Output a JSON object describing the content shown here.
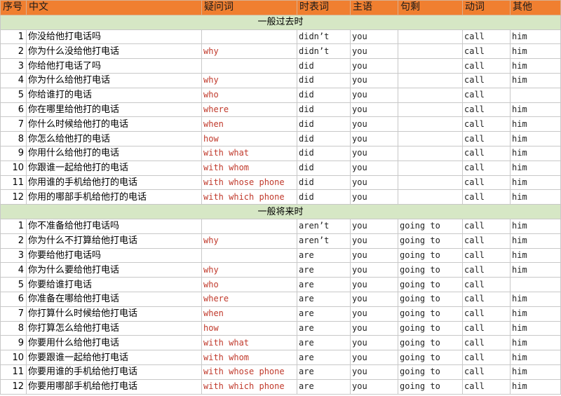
{
  "headers": [
    "序号",
    "中文",
    "疑问词",
    "时表词",
    "主语",
    "句剩",
    "动词",
    "其他"
  ],
  "sections": [
    {
      "title": "一般过去时",
      "rows": [
        [
          "1",
          "你没给他打电话吗",
          "",
          "didn’t",
          "you",
          "",
          "call",
          "him"
        ],
        [
          "2",
          "你为什么没给他打电话",
          "why",
          "didn’t",
          "you",
          "",
          "call",
          "him"
        ],
        [
          "3",
          "你给他打电话了吗",
          "",
          "did",
          "you",
          "",
          "call",
          "him"
        ],
        [
          "4",
          "你为什么给他打电话",
          "why",
          "did",
          "you",
          "",
          "call",
          "him"
        ],
        [
          "5",
          "你给谁打的电话",
          "who",
          "did",
          "you",
          "",
          "call",
          ""
        ],
        [
          "6",
          "你在哪里给他打的电话",
          "where",
          "did",
          "you",
          "",
          "call",
          "him"
        ],
        [
          "7",
          "你什么时候给他打的电话",
          "when",
          "did",
          "you",
          "",
          "call",
          "him"
        ],
        [
          "8",
          "你怎么给他打的电话",
          "how",
          "did",
          "you",
          "",
          "call",
          "him"
        ],
        [
          "9",
          "你用什么给他打的电话",
          "with what",
          "did",
          "you",
          "",
          "call",
          "him"
        ],
        [
          "10",
          "你跟谁一起给他打的电话",
          "with whom",
          "did",
          "you",
          "",
          "call",
          "him"
        ],
        [
          "11",
          "你用谁的手机给他打的电话",
          "with whose phone",
          "did",
          "you",
          "",
          "call",
          "him"
        ],
        [
          "12",
          "你用的哪部手机给他打的电话",
          "with which phone",
          "did",
          "you",
          "",
          "call",
          "him"
        ]
      ]
    },
    {
      "title": "一般将来时",
      "rows": [
        [
          "1",
          "你不准备给他打电话吗",
          "",
          "aren’t",
          "you",
          "going to",
          "call",
          "him"
        ],
        [
          "2",
          "你为什么不打算给他打电话",
          "why",
          "aren’t",
          "you",
          "going to",
          "call",
          "him"
        ],
        [
          "3",
          "你要给他打电话吗",
          "",
          "are",
          "you",
          "going to",
          "call",
          "him"
        ],
        [
          "4",
          "你为什么要给他打电话",
          "why",
          "are",
          "you",
          "going to",
          "call",
          "him"
        ],
        [
          "5",
          "你要给谁打电话",
          "who",
          "are",
          "you",
          "going to",
          "call",
          ""
        ],
        [
          "6",
          "你准备在哪给他打电话",
          "where",
          "are",
          "you",
          "going to",
          "call",
          "him"
        ],
        [
          "7",
          "你打算什么时候给他打电话",
          "when",
          "are",
          "you",
          "going to",
          "call",
          "him"
        ],
        [
          "8",
          "你打算怎么给他打电话",
          "how",
          "are",
          "you",
          "going to",
          "call",
          "him"
        ],
        [
          "9",
          "你要用什么给他打电话",
          "with what",
          "are",
          "you",
          "going to",
          "call",
          "him"
        ],
        [
          "10",
          "你要跟谁一起给他打电话",
          "with whom",
          "are",
          "you",
          "going to",
          "call",
          "him"
        ],
        [
          "11",
          "你要用谁的手机给他打电话",
          "with whose phone",
          "are",
          "you",
          "going to",
          "call",
          "him"
        ],
        [
          "12",
          "你要用哪部手机给他打电话",
          "with which phone",
          "are",
          "you",
          "going to",
          "call",
          "him"
        ]
      ]
    }
  ]
}
